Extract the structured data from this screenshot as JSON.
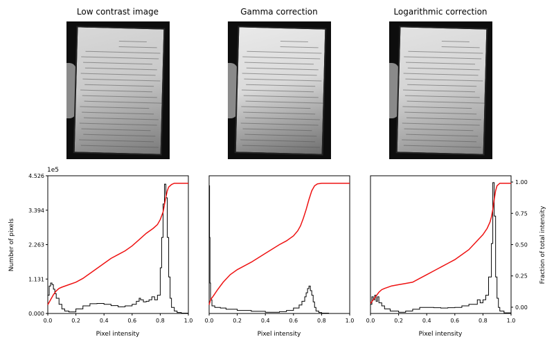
{
  "panels": [
    {
      "title": "Low contrast image",
      "variant": "low"
    },
    {
      "title": "Gamma correction",
      "variant": "gamma"
    },
    {
      "title": "Logarithmic correction",
      "variant": "log"
    }
  ],
  "chart_data": [
    {
      "type": "area",
      "title": "",
      "xlabel": "Pixel intensity",
      "ylabel": "Number of pixels",
      "y_exponent_label": "1e5",
      "xlim": [
        0,
        1
      ],
      "ylim": [
        0,
        452600
      ],
      "xticks": [
        "0.0",
        "0.2",
        "0.4",
        "0.6",
        "0.8",
        "1.0"
      ],
      "yticks": [
        "0.000",
        "1.131",
        "2.263",
        "3.394",
        "4.526"
      ],
      "series": [
        {
          "role": "histogram",
          "color": "#000000",
          "x": [
            0,
            0.01,
            0.02,
            0.03,
            0.04,
            0.05,
            0.06,
            0.08,
            0.1,
            0.12,
            0.15,
            0.2,
            0.25,
            0.3,
            0.35,
            0.4,
            0.45,
            0.5,
            0.55,
            0.6,
            0.63,
            0.65,
            0.66,
            0.68,
            0.7,
            0.72,
            0.74,
            0.76,
            0.78,
            0.8,
            0.81,
            0.82,
            0.83,
            0.84,
            0.85,
            0.86,
            0.87,
            0.88,
            0.9,
            0.92,
            0.95,
            1.0
          ],
          "y": [
            60000,
            90000,
            100000,
            95000,
            80000,
            65000,
            50000,
            30000,
            15000,
            8000,
            5000,
            15000,
            25000,
            32000,
            33000,
            30000,
            26000,
            22000,
            25000,
            30000,
            40000,
            50000,
            45000,
            38000,
            40000,
            45000,
            55000,
            45000,
            60000,
            150000,
            250000,
            360000,
            425000,
            380000,
            250000,
            120000,
            50000,
            20000,
            8000,
            3000,
            1000,
            0
          ]
        },
        {
          "role": "cumulative",
          "color": "#ee1111",
          "x": [
            0,
            0.02,
            0.04,
            0.06,
            0.08,
            0.1,
            0.15,
            0.2,
            0.25,
            0.3,
            0.35,
            0.4,
            0.45,
            0.5,
            0.55,
            0.6,
            0.65,
            0.7,
            0.75,
            0.78,
            0.8,
            0.82,
            0.83,
            0.84,
            0.85,
            0.86,
            0.88,
            0.9,
            1.0
          ],
          "y": [
            0.02,
            0.06,
            0.1,
            0.13,
            0.15,
            0.16,
            0.18,
            0.2,
            0.23,
            0.27,
            0.31,
            0.35,
            0.39,
            0.42,
            0.45,
            0.49,
            0.54,
            0.59,
            0.63,
            0.66,
            0.7,
            0.76,
            0.82,
            0.88,
            0.93,
            0.96,
            0.98,
            0.99,
            0.99
          ]
        }
      ]
    },
    {
      "type": "area",
      "title": "",
      "xlabel": "Pixel intensity",
      "ylabel": "",
      "xlim": [
        0,
        1
      ],
      "ylim": [
        0,
        452600
      ],
      "xticks": [
        "0.0",
        "0.2",
        "0.4",
        "0.6",
        "0.8",
        "1.0"
      ],
      "series": [
        {
          "role": "histogram",
          "color": "#000000",
          "x": [
            0,
            0.003,
            0.006,
            0.01,
            0.02,
            0.04,
            0.08,
            0.12,
            0.2,
            0.3,
            0.4,
            0.5,
            0.55,
            0.6,
            0.64,
            0.66,
            0.68,
            0.69,
            0.7,
            0.71,
            0.72,
            0.73,
            0.74,
            0.75,
            0.76,
            0.78,
            0.8,
            0.85,
            1.0
          ],
          "y": [
            420000,
            250000,
            100000,
            45000,
            25000,
            20000,
            18000,
            14000,
            10000,
            7000,
            4000,
            6000,
            10000,
            18000,
            28000,
            40000,
            55000,
            68000,
            82000,
            90000,
            75000,
            60000,
            38000,
            20000,
            8000,
            3000,
            1000,
            0,
            0
          ]
        },
        {
          "role": "cumulative",
          "color": "#ee1111",
          "x": [
            0,
            0.01,
            0.03,
            0.06,
            0.1,
            0.15,
            0.2,
            0.3,
            0.4,
            0.5,
            0.55,
            0.6,
            0.63,
            0.65,
            0.67,
            0.69,
            0.71,
            0.73,
            0.75,
            0.77,
            0.8,
            0.85,
            1.0
          ],
          "y": [
            0.02,
            0.06,
            0.09,
            0.14,
            0.2,
            0.26,
            0.3,
            0.36,
            0.43,
            0.5,
            0.53,
            0.57,
            0.61,
            0.65,
            0.71,
            0.78,
            0.86,
            0.93,
            0.97,
            0.985,
            0.99,
            0.99,
            0.99
          ]
        }
      ]
    },
    {
      "type": "area",
      "title": "",
      "xlabel": "Pixel intensity",
      "ylabel": "Fraction of total intensity",
      "xlim": [
        0,
        1
      ],
      "ylim": [
        -0.05,
        1.05
      ],
      "xticks": [
        "0.0",
        "0.2",
        "0.4",
        "0.6",
        "0.8",
        "1.0"
      ],
      "yticks_right": [
        "0.00",
        "0.25",
        "0.50",
        "0.75",
        "1.00"
      ],
      "series": [
        {
          "role": "histogram",
          "color": "#000000",
          "x": [
            0,
            0.01,
            0.02,
            0.03,
            0.04,
            0.05,
            0.06,
            0.08,
            0.1,
            0.14,
            0.2,
            0.25,
            0.3,
            0.35,
            0.4,
            0.45,
            0.5,
            0.55,
            0.6,
            0.65,
            0.7,
            0.74,
            0.76,
            0.78,
            0.8,
            0.82,
            0.84,
            0.86,
            0.87,
            0.88,
            0.89,
            0.9,
            0.91,
            0.92,
            0.95,
            1.0
          ],
          "y": [
            30000,
            55000,
            45000,
            60000,
            40000,
            55000,
            35000,
            25000,
            15000,
            8000,
            4000,
            8000,
            14000,
            20000,
            20000,
            19000,
            18000,
            19000,
            20000,
            25000,
            30000,
            30000,
            45000,
            35000,
            45000,
            60000,
            120000,
            230000,
            430000,
            320000,
            120000,
            50000,
            20000,
            8000,
            2000,
            0
          ]
        },
        {
          "role": "cumulative",
          "color": "#ee1111",
          "x": [
            0,
            0.02,
            0.04,
            0.06,
            0.08,
            0.1,
            0.15,
            0.2,
            0.25,
            0.3,
            0.35,
            0.4,
            0.45,
            0.5,
            0.55,
            0.6,
            0.65,
            0.7,
            0.75,
            0.8,
            0.83,
            0.85,
            0.86,
            0.87,
            0.88,
            0.89,
            0.9,
            0.92,
            1.0
          ],
          "y": [
            0.03,
            0.06,
            0.09,
            0.12,
            0.14,
            0.15,
            0.17,
            0.18,
            0.19,
            0.2,
            0.23,
            0.26,
            0.29,
            0.32,
            0.35,
            0.38,
            0.42,
            0.46,
            0.52,
            0.58,
            0.63,
            0.68,
            0.72,
            0.78,
            0.86,
            0.93,
            0.97,
            0.99,
            0.99
          ]
        }
      ]
    }
  ]
}
